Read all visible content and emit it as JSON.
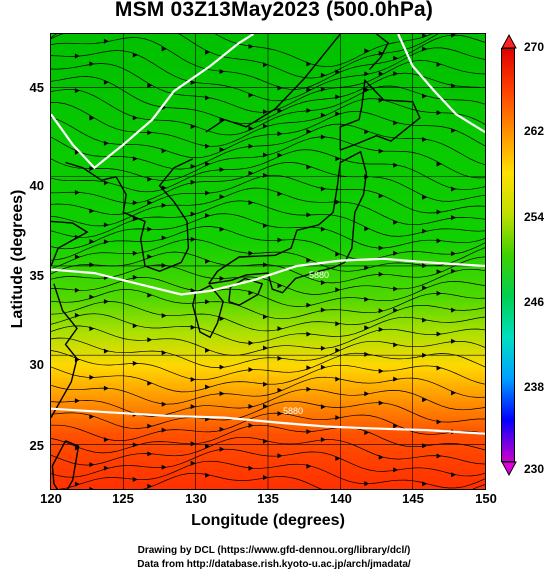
{
  "title": "MSM 03Z13May2023 (500.0hPa)",
  "xaxis": {
    "label": "Longitude (degrees)",
    "ticks": [
      "120",
      "125",
      "130",
      "135",
      "140",
      "145",
      "150"
    ]
  },
  "yaxis": {
    "label": "Latitude  (degrees)",
    "ticks": [
      "45",
      "40",
      "35",
      "30",
      "25"
    ]
  },
  "colorbar": {
    "ticks": [
      "270",
      "262",
      "254",
      "246",
      "238",
      "230"
    ],
    "colors": [
      "#cc00cc",
      "#0000ff",
      "#00a0ff",
      "#00e0c0",
      "#00d050",
      "#40d000",
      "#c0e000",
      "#ffe000",
      "#ff9000",
      "#ff4000",
      "#e00000"
    ]
  },
  "map": {
    "lon_range": [
      120,
      150
    ],
    "lat_range": [
      22.5,
      48
    ],
    "contour_labels": [
      "5880",
      "5880"
    ],
    "colors": {
      "cold": "#00c800",
      "mid": "#60d800",
      "warm": "#ffd000",
      "hot": "#ff4000",
      "contour": "#ffffff",
      "streamline": "#000000"
    }
  },
  "footer": {
    "line1": "Drawing by DCL (https://www.gfd-dennou.org/library/dcl/)",
    "line2": "Data from http://database.rish.kyoto-u.ac.jp/arch/jmadata/"
  }
}
